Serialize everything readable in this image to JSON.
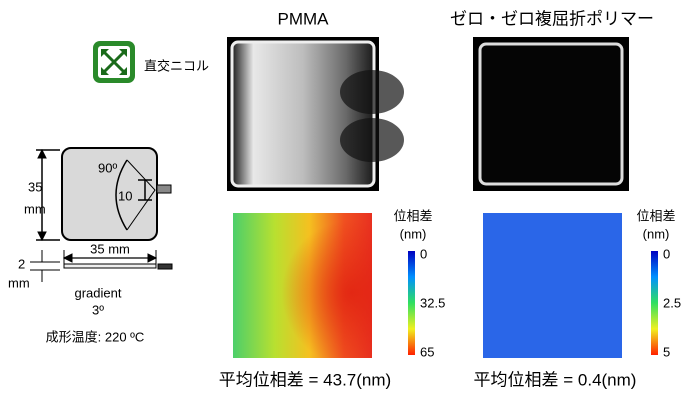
{
  "legend": {
    "label": "直交ニコル"
  },
  "sample": {
    "height": "35",
    "height_unit": "mm",
    "angle": "90º",
    "inner": "10",
    "width": "35 mm",
    "thickness": "2",
    "thickness_unit": "mm",
    "gradient": "gradient",
    "gradient_angle": "3º",
    "temperature": "成形温度: 220 ºC"
  },
  "panels": [
    {
      "title": "PMMA",
      "colorbar": {
        "title": "位相差",
        "unit": "(nm)",
        "ticks": [
          "0",
          "32.5",
          "65"
        ]
      },
      "average": "平均位相差 = 43.7(nm)"
    },
    {
      "title": "ゼロ・ゼロ複屈折ポリマー",
      "colorbar": {
        "title": "位相差",
        "unit": "(nm)",
        "ticks": [
          "0",
          "2.5",
          "5"
        ]
      },
      "average": "平均位相差 = 0.4(nm)"
    }
  ]
}
